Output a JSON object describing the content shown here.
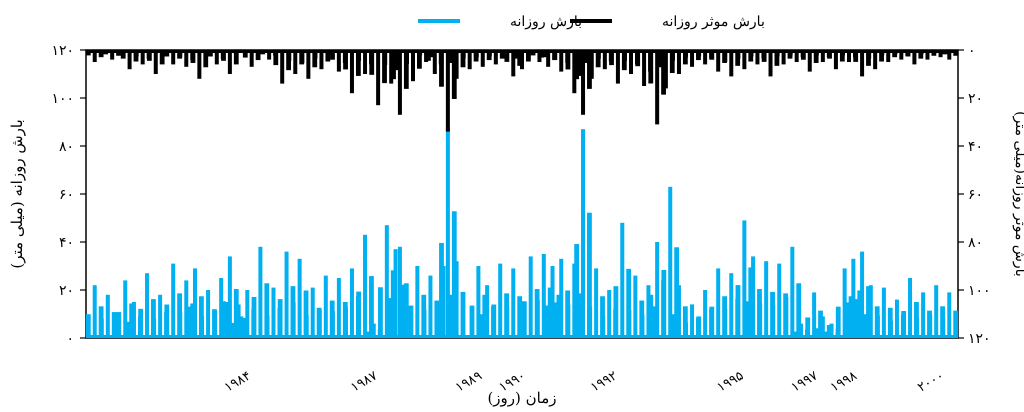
{
  "chart_data": {
    "type": "bar",
    "xlabel": "زمان (روز)",
    "ylabel_left": "بارش روزانه (میلی متر)",
    "ylabel_right": "بارش موثر روزانه(میلی متر)",
    "ylim_left": [
      0,
      120
    ],
    "ylim_right": [
      0,
      120
    ],
    "right_axis_inverted": true,
    "left_ticks": [
      "۰",
      "۲۰",
      "۴۰",
      "۶۰",
      "۸۰",
      "۱۰۰",
      "۱۲۰"
    ],
    "left_tick_values": [
      0,
      20,
      40,
      60,
      80,
      100,
      120
    ],
    "right_ticks": [
      "۰",
      "۲۰",
      "۴۰",
      "۶۰",
      "۸۰",
      "۱۰۰",
      "۱۲۰"
    ],
    "right_tick_values": [
      0,
      20,
      40,
      60,
      80,
      100,
      120
    ],
    "year_labels": [
      "۱۹۸۴",
      "۱۹۸۷",
      "۱۹۸۹",
      "۱۹۹۰",
      "۱۹۹۲",
      "۱۹۹۵",
      "۱۹۹۷",
      "۱۹۹۸",
      "۲۰۰۰"
    ],
    "year_positions": [
      0.19,
      0.335,
      0.455,
      0.505,
      0.61,
      0.755,
      0.84,
      0.885,
      0.985
    ],
    "legend_position": "top-center",
    "grid": false,
    "series": [
      {
        "name": "بارش روزانه",
        "color": "#00b0f0",
        "axis": "left",
        "peaks": [
          [
            0.01,
            22
          ],
          [
            0.025,
            18
          ],
          [
            0.045,
            24
          ],
          [
            0.055,
            15
          ],
          [
            0.07,
            27
          ],
          [
            0.085,
            18
          ],
          [
            0.1,
            31
          ],
          [
            0.115,
            24
          ],
          [
            0.125,
            29
          ],
          [
            0.14,
            20
          ],
          [
            0.155,
            25
          ],
          [
            0.165,
            34
          ],
          [
            0.175,
            14
          ],
          [
            0.185,
            20
          ],
          [
            0.2,
            38
          ],
          [
            0.215,
            21
          ],
          [
            0.23,
            36
          ],
          [
            0.245,
            33
          ],
          [
            0.26,
            21
          ],
          [
            0.275,
            26
          ],
          [
            0.29,
            25
          ],
          [
            0.305,
            29
          ],
          [
            0.32,
            43
          ],
          [
            0.33,
            6
          ],
          [
            0.345,
            47
          ],
          [
            0.355,
            37
          ],
          [
            0.36,
            38
          ],
          [
            0.38,
            30
          ],
          [
            0.395,
            26
          ],
          [
            0.41,
            30
          ],
          [
            0.415,
            88
          ],
          [
            0.425,
            32
          ],
          [
            0.45,
            30
          ],
          [
            0.46,
            22
          ],
          [
            0.475,
            31
          ],
          [
            0.49,
            29
          ],
          [
            0.51,
            34
          ],
          [
            0.525,
            35
          ],
          [
            0.535,
            30
          ],
          [
            0.545,
            33
          ],
          [
            0.56,
            31
          ],
          [
            0.57,
            87
          ],
          [
            0.585,
            29
          ],
          [
            0.6,
            20
          ],
          [
            0.615,
            48
          ],
          [
            0.63,
            26
          ],
          [
            0.645,
            22
          ],
          [
            0.655,
            40
          ],
          [
            0.67,
            63
          ],
          [
            0.68,
            22
          ],
          [
            0.695,
            14
          ],
          [
            0.71,
            20
          ],
          [
            0.725,
            29
          ],
          [
            0.74,
            27
          ],
          [
            0.755,
            49
          ],
          [
            0.765,
            34
          ],
          [
            0.78,
            32
          ],
          [
            0.795,
            31
          ],
          [
            0.81,
            38
          ],
          [
            0.82,
            6
          ],
          [
            0.835,
            19
          ],
          [
            0.845,
            9
          ],
          [
            0.855,
            6
          ],
          [
            0.87,
            29
          ],
          [
            0.88,
            33
          ],
          [
            0.89,
            36
          ],
          [
            0.9,
            22
          ],
          [
            0.915,
            21
          ],
          [
            0.93,
            16
          ],
          [
            0.945,
            25
          ],
          [
            0.96,
            19
          ],
          [
            0.975,
            22
          ],
          [
            0.99,
            19
          ]
        ]
      },
      {
        "name": "بارش موثر روزانه",
        "color": "#000000",
        "axis": "right",
        "peaks": [
          [
            0.01,
            5
          ],
          [
            0.03,
            4
          ],
          [
            0.05,
            8
          ],
          [
            0.065,
            6
          ],
          [
            0.08,
            10
          ],
          [
            0.1,
            6
          ],
          [
            0.115,
            7
          ],
          [
            0.13,
            12
          ],
          [
            0.15,
            6
          ],
          [
            0.165,
            10
          ],
          [
            0.19,
            7
          ],
          [
            0.21,
            4
          ],
          [
            0.225,
            14
          ],
          [
            0.24,
            10
          ],
          [
            0.255,
            12
          ],
          [
            0.27,
            8
          ],
          [
            0.29,
            9
          ],
          [
            0.305,
            18
          ],
          [
            0.32,
            10
          ],
          [
            0.335,
            23
          ],
          [
            0.35,
            14
          ],
          [
            0.36,
            27
          ],
          [
            0.375,
            13
          ],
          [
            0.39,
            5
          ],
          [
            0.4,
            10
          ],
          [
            0.415,
            34
          ],
          [
            0.425,
            12
          ],
          [
            0.44,
            8
          ],
          [
            0.455,
            7
          ],
          [
            0.47,
            6
          ],
          [
            0.49,
            11
          ],
          [
            0.5,
            8
          ],
          [
            0.52,
            5
          ],
          [
            0.53,
            7
          ],
          [
            0.545,
            9
          ],
          [
            0.56,
            18
          ],
          [
            0.57,
            27
          ],
          [
            0.58,
            12
          ],
          [
            0.595,
            8
          ],
          [
            0.61,
            14
          ],
          [
            0.625,
            10
          ],
          [
            0.64,
            15
          ],
          [
            0.655,
            31
          ],
          [
            0.665,
            16
          ],
          [
            0.68,
            10
          ],
          [
            0.695,
            7
          ],
          [
            0.71,
            6
          ],
          [
            0.725,
            9
          ],
          [
            0.74,
            11
          ],
          [
            0.755,
            8
          ],
          [
            0.77,
            6
          ],
          [
            0.785,
            11
          ],
          [
            0.8,
            6
          ],
          [
            0.815,
            5
          ],
          [
            0.83,
            9
          ],
          [
            0.845,
            5
          ],
          [
            0.86,
            8
          ],
          [
            0.875,
            5
          ],
          [
            0.89,
            11
          ],
          [
            0.905,
            8
          ],
          [
            0.92,
            5
          ],
          [
            0.935,
            4
          ],
          [
            0.95,
            6
          ],
          [
            0.965,
            4
          ],
          [
            0.98,
            3
          ],
          [
            0.99,
            4
          ]
        ]
      }
    ]
  }
}
